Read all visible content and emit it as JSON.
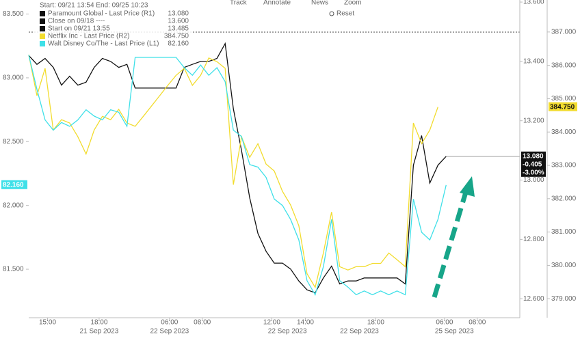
{
  "chart_data": {
    "type": "line",
    "header": {
      "range": "Start: 09/21 13:54 End: 09/25 10:23",
      "menu": [
        "Track",
        "Annotate",
        "News",
        "Zoom",
        "Reset"
      ]
    },
    "x": [
      0,
      1,
      2,
      3,
      4,
      5,
      6,
      7,
      8,
      9,
      10,
      11,
      12,
      13,
      14,
      15,
      16,
      17,
      18,
      19,
      20,
      21,
      22,
      23,
      24,
      25,
      26,
      27,
      28,
      29,
      30,
      31,
      32,
      33,
      34,
      35,
      36,
      37,
      38,
      39,
      40,
      41,
      42,
      43,
      44,
      45,
      46,
      47,
      48,
      49,
      50,
      51,
      52
    ],
    "xlim": [
      0,
      60
    ],
    "xticks": [
      {
        "value": 2.3,
        "label": "15:00"
      },
      {
        "value": 8.6,
        "label": "18:00"
      },
      {
        "value": 17.2,
        "label": "06:00"
      },
      {
        "value": 21.2,
        "label": "08:00"
      },
      {
        "value": 29.7,
        "label": "12:00"
      },
      {
        "value": 33.8,
        "label": "14:00"
      },
      {
        "value": 42.4,
        "label": "18:00"
      },
      {
        "value": 50.8,
        "label": "06:00"
      },
      {
        "value": 54.8,
        "label": "08:00"
      }
    ],
    "x_groups": [
      {
        "value": 8.6,
        "label": "21 Sep 2023"
      },
      {
        "value": 17.2,
        "label": "22 Sep 2023"
      },
      {
        "value": 31.6,
        "label": "22 Sep 2023"
      },
      {
        "value": 40.4,
        "label": "22 Sep 2023"
      },
      {
        "value": 52,
        "label": "25 Sep 2023"
      }
    ],
    "ylim": [
      81.12,
      83.61
    ],
    "yticks": [
      {
        "value": 81.5,
        "label": "81.500"
      },
      {
        "value": 82,
        "label": "82.000"
      },
      {
        "value": 82.5,
        "label": "82.500"
      },
      {
        "value": 83,
        "label": "83.000"
      },
      {
        "value": 83.5,
        "label": "83.500"
      }
    ],
    "y2lim": [
      12.536,
      13.607
    ],
    "y2ticks": [
      {
        "value": 12.6,
        "label": "12.600"
      },
      {
        "value": 12.8,
        "label": "12.800"
      },
      {
        "value": 13,
        "label": "13.000"
      },
      {
        "value": 13.2,
        "label": "13.200"
      },
      {
        "value": 13.4,
        "label": "13.400"
      },
      {
        "value": 13.6,
        "label": "13.600"
      }
    ],
    "y3lim": [
      378.43,
      387.96
    ],
    "y3ticks": [
      {
        "value": 379,
        "label": "379.000"
      },
      {
        "value": 380,
        "label": "380.000"
      },
      {
        "value": 381,
        "label": "381.000"
      },
      {
        "value": 382,
        "label": "382.000"
      },
      {
        "value": 383,
        "label": "383.000"
      },
      {
        "value": 384,
        "label": "384.000"
      },
      {
        "value": 385,
        "label": "385.000"
      },
      {
        "value": 386,
        "label": "386.000"
      },
      {
        "value": 387,
        "label": "387.000"
      }
    ],
    "reference_lines": [
      {
        "label": "Close on 09/18 ----",
        "value_label": "13.600"
      },
      {
        "label": "Start on 09/21 13:55",
        "value_label": "13.485"
      }
    ],
    "series": [
      {
        "name": "Paramount Global - Last Price (R1)",
        "color": "#111111",
        "axis": "y2",
        "last": "13.080",
        "change": "-0.405",
        "change_pct": "-3.00%",
        "values": [
          13.42,
          13.39,
          13.41,
          13.38,
          13.32,
          13.35,
          13.32,
          13.33,
          13.38,
          13.41,
          13.4,
          13.38,
          13.39,
          13.31,
          13.31,
          13.31,
          13.31,
          13.31,
          13.31,
          13.38,
          13.39,
          13.4,
          13.4,
          13.41,
          13.46,
          13.24,
          13.1,
          12.94,
          12.82,
          12.76,
          12.72,
          12.72,
          12.7,
          12.66,
          12.63,
          12.62,
          12.67,
          12.71,
          12.65,
          12.66,
          12.66,
          12.67,
          12.67,
          12.67,
          12.67,
          12.67,
          12.65,
          13.05,
          13.15,
          12.99,
          13.05,
          13.08,
          null
        ]
      },
      {
        "name": "Netflix Inc - Last Price (R2)",
        "color": "#f2dc2e",
        "axis": "y3",
        "last": "384.750",
        "values": [
          386.32,
          385.09,
          385.91,
          384.06,
          384.37,
          384.27,
          383.86,
          383.34,
          384.06,
          384.47,
          384.37,
          384.68,
          384.27,
          384.17,
          384.47,
          384.78,
          385.09,
          385.4,
          385.7,
          385.91,
          385.4,
          385.7,
          386.22,
          386.11,
          385.91,
          382.42,
          383.86,
          383.24,
          383.65,
          383.04,
          382.83,
          382.22,
          381.81,
          381.19,
          379.75,
          379.34,
          380.37,
          381.6,
          379.96,
          379.86,
          379.96,
          379.96,
          380.06,
          380.06,
          380.37,
          380.17,
          379.96,
          384.27,
          383.65,
          384.06,
          384.75,
          null,
          null
        ]
      },
      {
        "name": "Walt Disney Co/The - Last Price (L1)",
        "color": "#3fe0e8",
        "axis": "y",
        "last": "82.160",
        "values": [
          83.18,
          82.91,
          82.67,
          82.59,
          82.65,
          82.62,
          82.67,
          82.75,
          82.7,
          82.67,
          82.75,
          82.73,
          82.62,
          83.16,
          83.16,
          83.16,
          83.16,
          83.16,
          83.16,
          83.08,
          83.02,
          83.1,
          83.02,
          83.08,
          82.97,
          82.59,
          82.54,
          82.32,
          82.3,
          82.22,
          82.05,
          82.0,
          81.89,
          81.73,
          81.41,
          81.3,
          81.52,
          81.89,
          81.41,
          81.36,
          81.3,
          81.33,
          81.3,
          81.33,
          81.3,
          81.33,
          81.3,
          82.05,
          81.79,
          81.73,
          81.89,
          82.16,
          null
        ]
      }
    ]
  }
}
